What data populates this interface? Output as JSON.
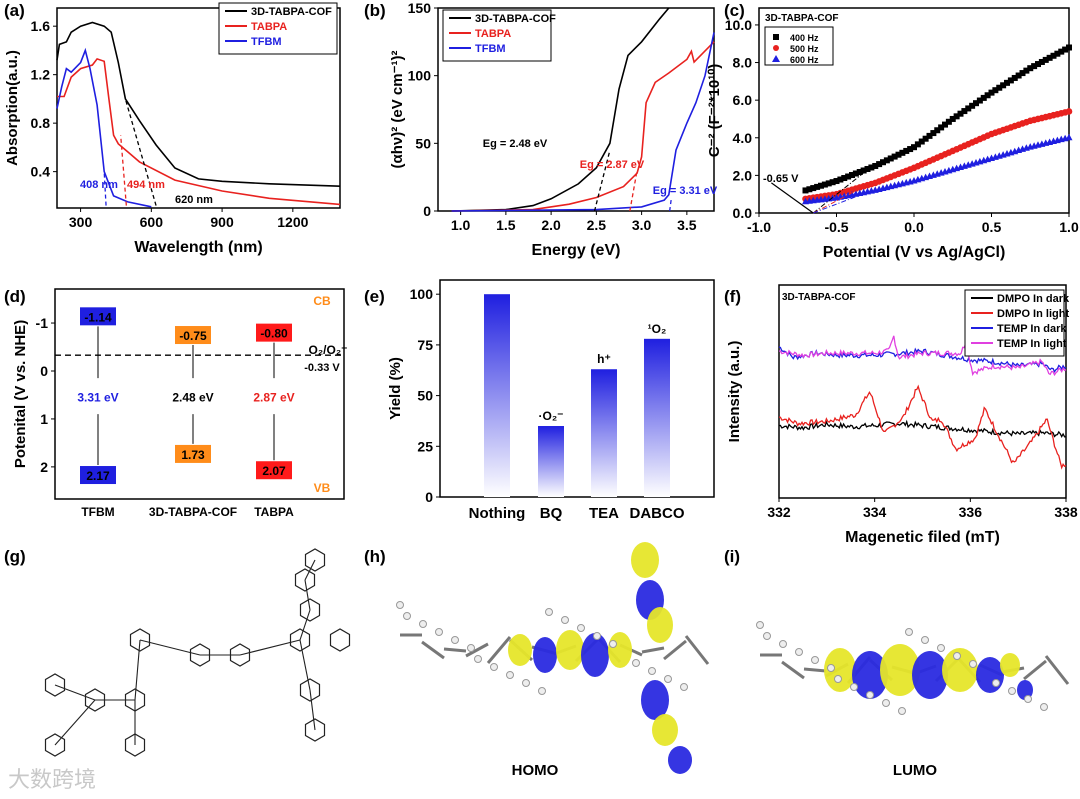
{
  "panel_labels": [
    "(a)",
    "(b)",
    "(c)",
    "(d)",
    "(e)",
    "(f)",
    "(g)",
    "(h)",
    "(i)"
  ],
  "colors": {
    "black": "#000000",
    "red": "#e8221f",
    "blue": "#1f1fe0",
    "magenta": "#e040e0",
    "orange": "#ff8c1a",
    "yellow": "#e6e62a",
    "gray": "#808080"
  },
  "chart_data": [
    {
      "id": "a",
      "type": "line",
      "xlabel": "Wavelength (nm)",
      "ylabel": "Absorption(a.u.)",
      "xlim": [
        200,
        1400
      ],
      "ylim": [
        0.1,
        1.75
      ],
      "xticks": [
        300,
        600,
        900,
        1200
      ],
      "yticks": [
        0.4,
        0.8,
        1.2,
        1.6
      ],
      "xtick_labels": [
        "300",
        "600",
        "900",
        "1200"
      ],
      "ytick_labels": [
        "0.4",
        "0.8",
        "1.2",
        "1.6"
      ],
      "legend_position": "top-right",
      "series": [
        {
          "name": "3D-TABPA-COF",
          "color": "#000000",
          "points": [
            [
              200,
              1.32
            ],
            [
              210,
              1.45
            ],
            [
              240,
              1.47
            ],
            [
              260,
              1.55
            ],
            [
              300,
              1.6
            ],
            [
              350,
              1.63
            ],
            [
              400,
              1.6
            ],
            [
              430,
              1.55
            ],
            [
              460,
              1.3
            ],
            [
              490,
              1.0
            ],
            [
              550,
              0.82
            ],
            [
              620,
              0.62
            ],
            [
              700,
              0.43
            ],
            [
              800,
              0.34
            ],
            [
              900,
              0.32
            ],
            [
              1100,
              0.3
            ],
            [
              1400,
              0.28
            ]
          ]
        },
        {
          "name": "TABPA",
          "color": "#e8221f",
          "points": [
            [
              200,
              1.02
            ],
            [
              230,
              1.02
            ],
            [
              260,
              1.18
            ],
            [
              300,
              1.25
            ],
            [
              350,
              1.28
            ],
            [
              370,
              1.33
            ],
            [
              400,
              1.31
            ],
            [
              420,
              1.0
            ],
            [
              440,
              0.7
            ],
            [
              460,
              0.63
            ],
            [
              550,
              0.48
            ],
            [
              700,
              0.33
            ],
            [
              900,
              0.24
            ],
            [
              1100,
              0.18
            ],
            [
              1400,
              0.13
            ]
          ]
        },
        {
          "name": "TFBM",
          "color": "#1f1fe0",
          "points": [
            [
              200,
              0.92
            ],
            [
              220,
              1.1
            ],
            [
              240,
              1.25
            ],
            [
              260,
              1.22
            ],
            [
              300,
              1.3
            ],
            [
              320,
              1.4
            ],
            [
              340,
              1.25
            ],
            [
              370,
              0.95
            ],
            [
              400,
              0.4
            ],
            [
              420,
              0.3
            ],
            [
              440,
              0.2
            ],
            [
              500,
              0.15
            ],
            [
              600,
              0.11
            ]
          ]
        }
      ],
      "annotations": [
        {
          "text": "408 nm",
          "color": "#1f1fe0"
        },
        {
          "text": "494 nm",
          "color": "#e8221f"
        },
        {
          "text": "620 nm",
          "color": "#000000"
        }
      ],
      "edges_nm": [
        408,
        494,
        620
      ]
    },
    {
      "id": "b",
      "type": "line",
      "xlabel": "Energy (eV)",
      "ylabel": "(αhν)² (eV cm⁻¹)²",
      "xlim": [
        0.75,
        3.8
      ],
      "ylim": [
        0,
        150
      ],
      "xticks": [
        1.0,
        1.5,
        2.0,
        2.5,
        3.0,
        3.5
      ],
      "yticks": [
        0,
        50,
        100,
        150
      ],
      "xtick_labels": [
        "1.0",
        "1.5",
        "2.0",
        "2.5",
        "3.0",
        "3.5"
      ],
      "ytick_labels": [
        "0",
        "50",
        "100",
        "150"
      ],
      "legend_position": "top-left",
      "series": [
        {
          "name": "3D-TABPA-COF",
          "color": "#000000",
          "points": [
            [
              0.9,
              0
            ],
            [
              1.5,
              1
            ],
            [
              1.8,
              4
            ],
            [
              2.0,
              9
            ],
            [
              2.3,
              20
            ],
            [
              2.5,
              32
            ],
            [
              2.65,
              50
            ],
            [
              2.75,
              90
            ],
            [
              2.85,
              115
            ],
            [
              3.0,
              125
            ],
            [
              3.2,
              142
            ],
            [
              3.3,
              150
            ]
          ]
        },
        {
          "name": "TABPA",
          "color": "#e8221f",
          "points": [
            [
              0.9,
              0
            ],
            [
              1.8,
              1
            ],
            [
              2.2,
              5
            ],
            [
              2.5,
              10
            ],
            [
              2.8,
              18
            ],
            [
              2.95,
              28
            ],
            [
              3.0,
              40
            ],
            [
              3.05,
              80
            ],
            [
              3.15,
              95
            ],
            [
              3.3,
              102
            ],
            [
              3.5,
              112
            ],
            [
              3.55,
              118
            ],
            [
              3.58,
              110
            ],
            [
              3.8,
              125
            ]
          ]
        },
        {
          "name": "TFBM",
          "color": "#1f1fe0",
          "points": [
            [
              0.9,
              0
            ],
            [
              2.5,
              1
            ],
            [
              3.0,
              3
            ],
            [
              3.25,
              8
            ],
            [
              3.3,
              12
            ],
            [
              3.38,
              45
            ],
            [
              3.5,
              65
            ],
            [
              3.6,
              80
            ],
            [
              3.7,
              100
            ],
            [
              3.8,
              132
            ]
          ]
        }
      ],
      "annotations": [
        {
          "text": "Eg = 2.48 eV",
          "color": "#000000"
        },
        {
          "text": "Eg = 2.87 eV",
          "color": "#e8221f"
        },
        {
          "text": "Eg = 3.31 eV",
          "color": "#1f1fe0"
        }
      ],
      "bandgaps_eV": [
        2.48,
        2.87,
        3.31
      ]
    },
    {
      "id": "c",
      "type": "scatter",
      "xlabel": "Potential (V vs Ag/AgCl)",
      "ylabel": "C⁻² (F⁻²*10¹⁰)",
      "xlim": [
        -1.0,
        1.0
      ],
      "ylim": [
        0,
        10.9
      ],
      "xticks": [
        -1.0,
        -0.5,
        0.0,
        0.5,
        1.0
      ],
      "yticks": [
        0,
        2,
        4,
        6,
        8,
        10
      ],
      "xtick_labels": [
        "-1.0",
        "-0.5",
        "0.0",
        "0.5",
        "1.0"
      ],
      "ytick_labels": [
        "0.0",
        "2.0",
        "4.0",
        "6.0",
        "8.0",
        "10.0"
      ],
      "legend_title": "3D-TABPA-COF",
      "legend_position": "top-left",
      "series": [
        {
          "name": "400 Hz",
          "color": "#000000",
          "marker": "square",
          "points": [
            [
              -0.7,
              1.2
            ],
            [
              -0.5,
              1.7
            ],
            [
              -0.25,
              2.5
            ],
            [
              0,
              3.5
            ],
            [
              0.25,
              5.0
            ],
            [
              0.5,
              6.4
            ],
            [
              0.75,
              7.7
            ],
            [
              1.0,
              8.8
            ]
          ]
        },
        {
          "name": "500 Hz",
          "color": "#e8221f",
          "marker": "circle",
          "points": [
            [
              -0.7,
              0.75
            ],
            [
              -0.5,
              1.0
            ],
            [
              -0.25,
              1.6
            ],
            [
              0,
              2.4
            ],
            [
              0.25,
              3.3
            ],
            [
              0.5,
              4.2
            ],
            [
              0.75,
              4.9
            ],
            [
              1.0,
              5.4
            ]
          ]
        },
        {
          "name": "600 Hz",
          "color": "#1f1fe0",
          "marker": "triangle",
          "points": [
            [
              -0.7,
              0.6
            ],
            [
              -0.5,
              0.8
            ],
            [
              -0.25,
              1.2
            ],
            [
              0,
              1.7
            ],
            [
              0.25,
              2.3
            ],
            [
              0.5,
              2.9
            ],
            [
              0.75,
              3.5
            ],
            [
              1.0,
              4.0
            ]
          ]
        }
      ],
      "annotation": "-0.65 V",
      "flatband_V": -0.65
    },
    {
      "id": "d",
      "type": "bar",
      "ylabel": "Potenital (V vs. NHE)",
      "ylim": [
        -1.71,
        2.67
      ],
      "inverted": true,
      "yticks": [
        -1,
        0,
        1,
        2
      ],
      "ytick_labels": [
        "-1",
        "0",
        "1",
        "2"
      ],
      "categories": [
        "TFBM",
        "3D-TABPA-COF",
        "TABPA"
      ],
      "cb": [
        -1.14,
        -0.75,
        -0.8
      ],
      "vb": [
        2.17,
        1.73,
        2.07
      ],
      "cb_labels": [
        "-1.14",
        "-0.75",
        "-0.80"
      ],
      "vb_labels": [
        "2.17",
        "1.73",
        "2.07"
      ],
      "gaps": [
        "3.31 eV",
        "2.48 eV",
        "2.87 eV"
      ],
      "box_colors": [
        "#1f1fe0",
        "#ff8c1a",
        "#ff1a1a"
      ],
      "gap_colors": [
        "#1f1fe0",
        "#000000",
        "#e8221f"
      ],
      "cb_label": "CB",
      "vb_label": "VB",
      "ref_line": -0.33,
      "ref_label": "O₂/O₂⁻",
      "ref_value": "-0.33 V"
    },
    {
      "id": "e",
      "type": "bar",
      "ylabel": "Yield (%)",
      "ylim": [
        0,
        107
      ],
      "yticks": [
        0,
        25,
        50,
        75,
        100
      ],
      "ytick_labels": [
        "0",
        "25",
        "50",
        "75",
        "100"
      ],
      "categories": [
        "Nothing",
        "BQ",
        "TEA",
        "DABCO"
      ],
      "values": [
        100,
        35,
        63,
        78
      ],
      "bar_labels": [
        "",
        "·O₂⁻",
        "h⁺",
        "¹O₂"
      ],
      "color": "#1f1fe0"
    },
    {
      "id": "f",
      "type": "line",
      "xlabel": "Magenetic filed (mT)",
      "ylabel": "Intensity (a.u.)",
      "xlim": [
        332,
        338
      ],
      "ylim": [
        0,
        10
      ],
      "xticks": [
        332,
        334,
        336,
        338
      ],
      "xtick_labels": [
        "332",
        "334",
        "336",
        "338"
      ],
      "inset_title": "3D-TABPA-COF",
      "legend_position": "top-right",
      "series": [
        {
          "name": "DMPO In dark",
          "color": "#000000",
          "points": [
            [
              332,
              3.4
            ],
            [
              332.5,
              3.3
            ],
            [
              333,
              3.45
            ],
            [
              333.5,
              3.35
            ],
            [
              334,
              3.4
            ],
            [
              334.5,
              3.5
            ],
            [
              335,
              3.4
            ],
            [
              335.5,
              3.3
            ],
            [
              336,
              3.2
            ],
            [
              336.5,
              3.1
            ],
            [
              337,
              3.0
            ],
            [
              337.5,
              3.05
            ],
            [
              338,
              2.95
            ]
          ]
        },
        {
          "name": "DMPO In light",
          "color": "#e8221f",
          "points": [
            [
              332,
              3.8
            ],
            [
              332.4,
              3.5
            ],
            [
              333,
              3.6
            ],
            [
              333.6,
              3.9
            ],
            [
              333.9,
              5.0
            ],
            [
              334.2,
              3.0
            ],
            [
              334.6,
              3.8
            ],
            [
              334.9,
              5.2
            ],
            [
              335.2,
              3.6
            ],
            [
              335.4,
              3.7
            ],
            [
              335.7,
              2.3
            ],
            [
              336.1,
              2.8
            ],
            [
              336.3,
              4.2
            ],
            [
              336.6,
              2.9
            ],
            [
              336.9,
              1.6
            ],
            [
              337.3,
              2.7
            ],
            [
              337.6,
              3.7
            ],
            [
              337.9,
              1.5
            ],
            [
              338,
              1.6
            ]
          ]
        },
        {
          "name": "TEMP In dark",
          "color": "#1f1fe0",
          "points": [
            [
              332,
              7.1
            ],
            [
              332.3,
              6.6
            ],
            [
              332.8,
              6.8
            ],
            [
              333.3,
              6.7
            ],
            [
              334,
              6.7
            ],
            [
              334.6,
              6.8
            ],
            [
              335,
              6.9
            ],
            [
              335.5,
              6.7
            ],
            [
              336,
              6.5
            ],
            [
              336.5,
              6.4
            ],
            [
              337,
              6.2
            ],
            [
              337.5,
              6.3
            ],
            [
              337.7,
              6.0
            ],
            [
              338,
              6.2
            ]
          ]
        },
        {
          "name": "TEMP In light",
          "color": "#e040e0",
          "points": [
            [
              332,
              6.9
            ],
            [
              332.5,
              6.7
            ],
            [
              333,
              6.8
            ],
            [
              334,
              6.8
            ],
            [
              334.3,
              6.9
            ],
            [
              334.4,
              7.6
            ],
            [
              334.5,
              6.6
            ],
            [
              335,
              6.8
            ],
            [
              335.8,
              6.8
            ],
            [
              335.9,
              7.3
            ],
            [
              336.05,
              5.9
            ],
            [
              336.5,
              6.2
            ],
            [
              337,
              6.1
            ],
            [
              337.5,
              6.4
            ],
            [
              337.65,
              5.8
            ],
            [
              338,
              6.1
            ]
          ]
        }
      ]
    }
  ],
  "structures": {
    "homo_label": "HOMO",
    "lumo_label": "LUMO"
  },
  "watermark": "大数跨境"
}
